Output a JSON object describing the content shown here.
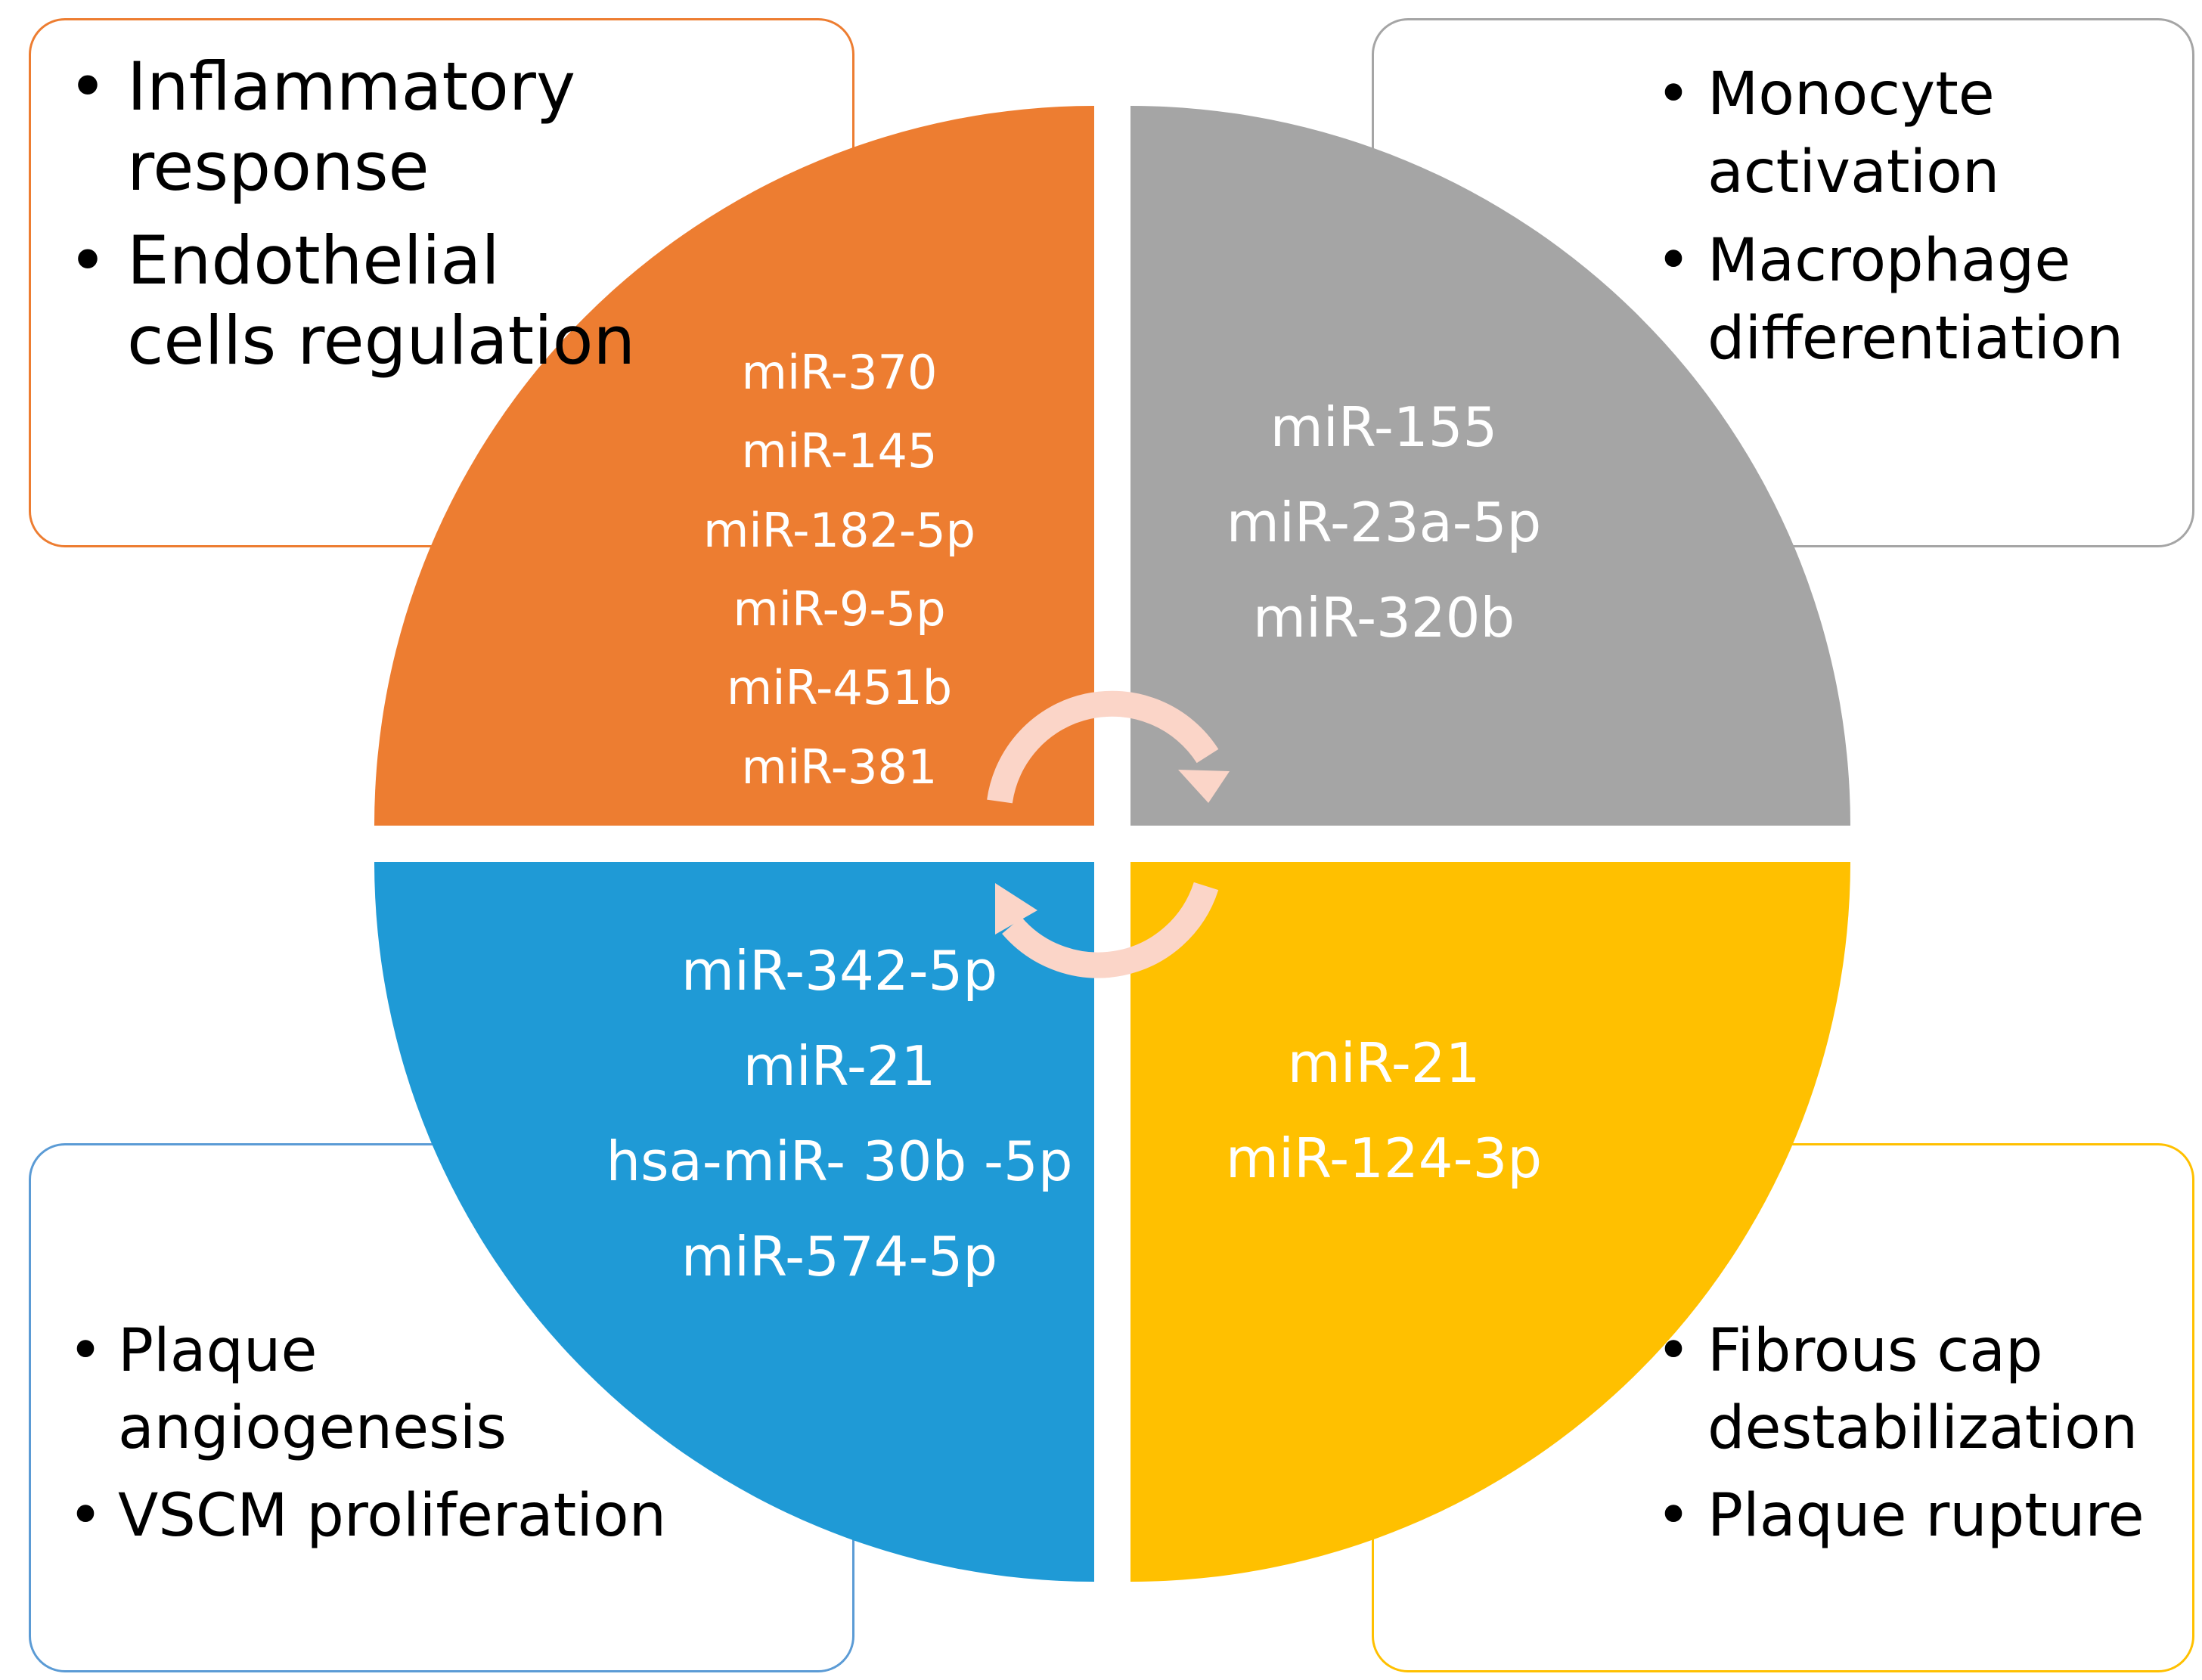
{
  "colors": {
    "orange": "#ed7d31",
    "gray": "#a5a5a5",
    "blue": "#1f9ad6",
    "yellow": "#ffc000",
    "arrow": "#fbd5c8"
  },
  "quadrants": {
    "top_left": {
      "mirnas": [
        "miR-370",
        "miR-145",
        "miR-182-5p",
        "miR-9-5p",
        "miR-451b",
        "miR-381"
      ],
      "functions": [
        "Inflammatory response",
        "Endothelial cells regulation"
      ]
    },
    "top_right": {
      "mirnas": [
        "miR-155",
        "miR-23a-5p",
        "miR-320b"
      ],
      "functions": [
        "Monocyte activation",
        "Macrophage differentiation"
      ]
    },
    "bottom_left": {
      "mirnas": [
        "miR-342-5p",
        "miR-21",
        "hsa-miR- 30b -5p",
        "miR-574-5p"
      ],
      "functions": [
        "Plaque angiogenesis",
        "VSCM proliferation"
      ]
    },
    "bottom_right": {
      "mirnas": [
        "miR-21",
        "miR-124-3p"
      ],
      "functions": [
        "Fibrous cap destabilization",
        "Plaque rupture"
      ]
    }
  },
  "cycle_arrows": [
    "arrow-top-clockwise",
    "arrow-bottom-clockwise"
  ]
}
